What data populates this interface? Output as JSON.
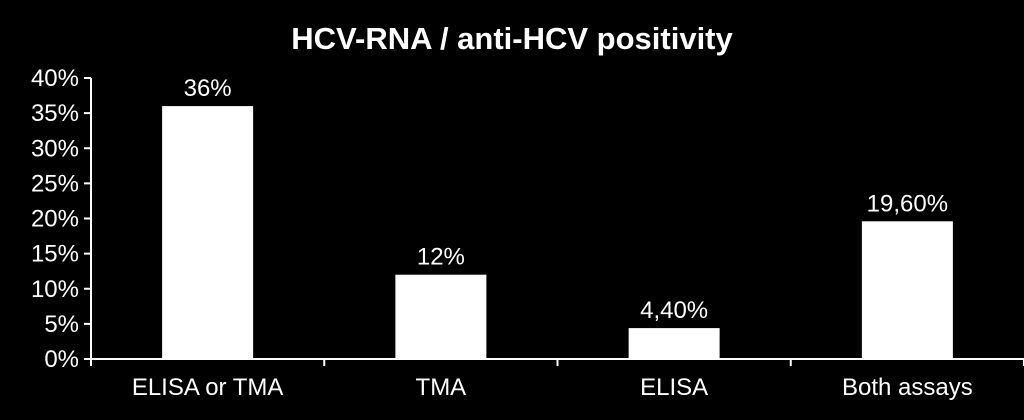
{
  "chart_data": {
    "type": "bar",
    "title": "HCV-RNA / anti-HCV positivity",
    "xlabel": "",
    "ylabel": "",
    "categories": [
      "ELISA or TMA",
      "TMA",
      "ELISA",
      "Both assays"
    ],
    "values": [
      36,
      12,
      4.4,
      19.6
    ],
    "data_labels": [
      "36%",
      "12%",
      "4,40%",
      "19,60%"
    ],
    "ylim": [
      0,
      40
    ],
    "y_ticks": [
      0,
      5,
      10,
      15,
      20,
      25,
      30,
      35,
      40
    ],
    "y_tick_labels": [
      "0%",
      "5%",
      "10%",
      "15%",
      "20%",
      "25%",
      "30%",
      "35%",
      "40%"
    ],
    "grid": false,
    "legend": "none",
    "colors": {
      "background": "#000000",
      "bar": "#ffffff",
      "axis": "#ffffff",
      "text": "#ffffff"
    }
  }
}
